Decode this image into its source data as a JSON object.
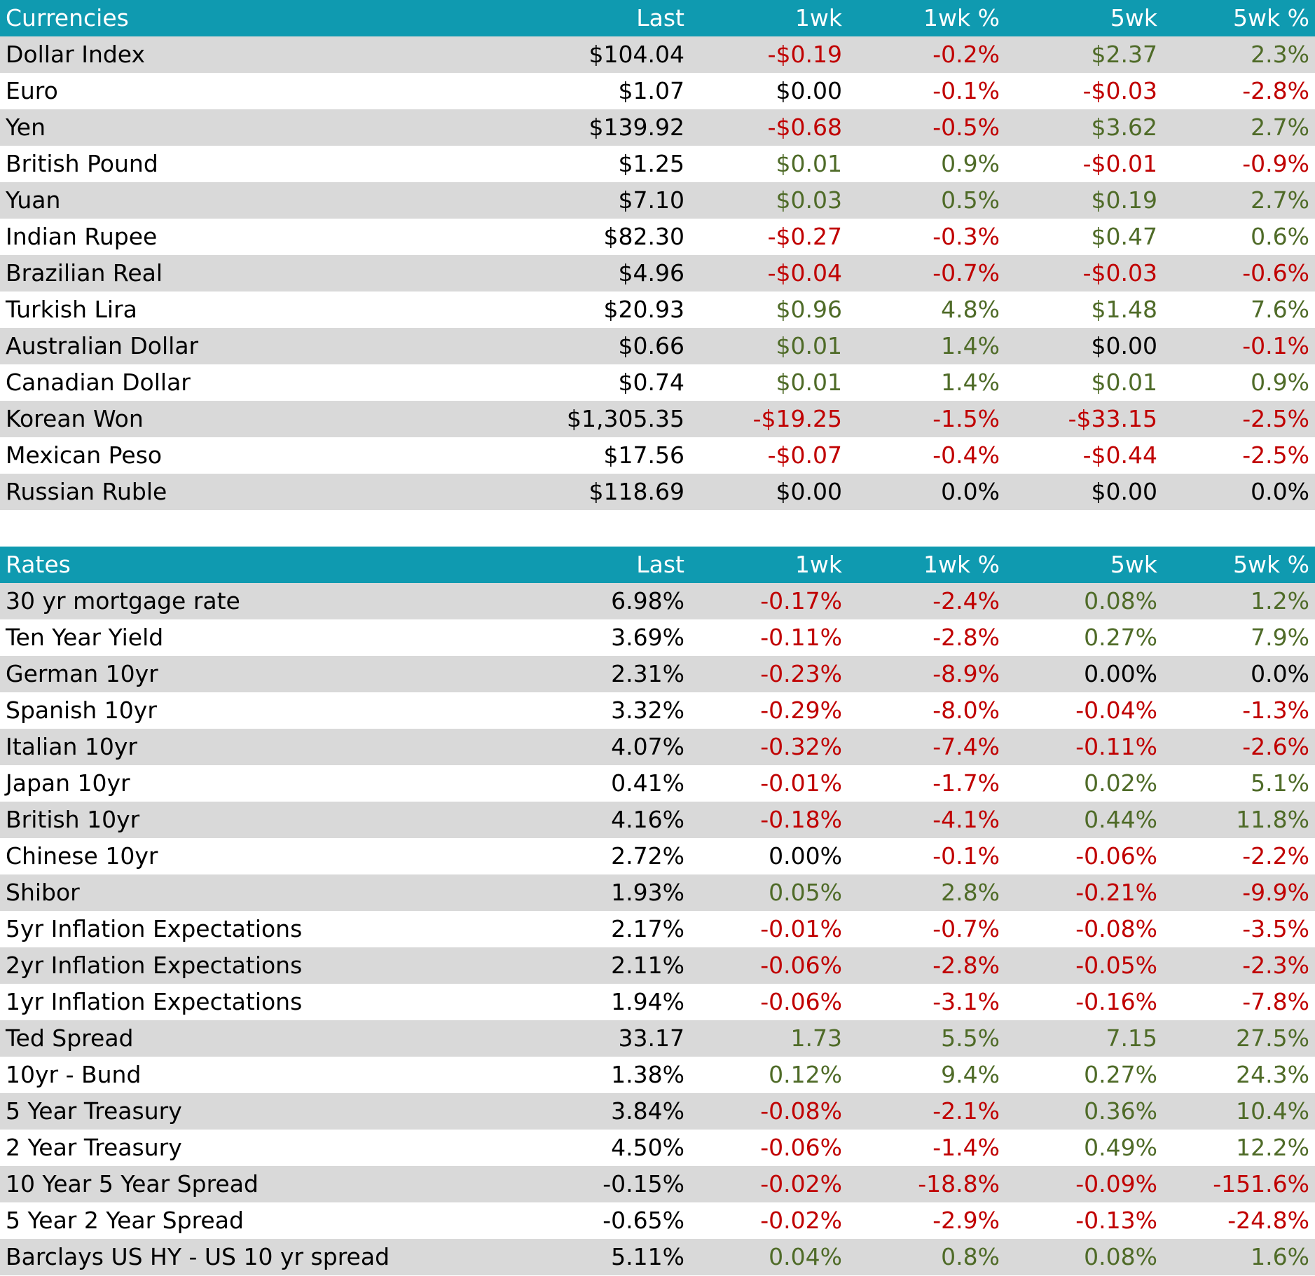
{
  "colors": {
    "header_bg": "#0f9ab0",
    "stripe": "#d9d9d9",
    "positive": "#4f6b28",
    "negative": "#c00000",
    "neutral": "#000000"
  },
  "currencies": {
    "headers": [
      "Currencies",
      "Last",
      "1wk",
      "1wk %",
      "5wk",
      "5wk %"
    ],
    "rows": [
      {
        "name": "Dollar Index",
        "last": "$104.04",
        "wk1": "-$0.19",
        "wk1p": "-0.2%",
        "wk5": "$2.37",
        "wk5p": "2.3%"
      },
      {
        "name": "Euro",
        "last": "$1.07",
        "wk1": "$0.00",
        "wk1p": "-0.1%",
        "wk5": "-$0.03",
        "wk5p": "-2.8%"
      },
      {
        "name": "Yen",
        "last": "$139.92",
        "wk1": "-$0.68",
        "wk1p": "-0.5%",
        "wk5": "$3.62",
        "wk5p": "2.7%"
      },
      {
        "name": "British Pound",
        "last": "$1.25",
        "wk1": "$0.01",
        "wk1p": "0.9%",
        "wk5": "-$0.01",
        "wk5p": "-0.9%"
      },
      {
        "name": "Yuan",
        "last": "$7.10",
        "wk1": "$0.03",
        "wk1p": "0.5%",
        "wk5": "$0.19",
        "wk5p": "2.7%"
      },
      {
        "name": "Indian Rupee",
        "last": "$82.30",
        "wk1": "-$0.27",
        "wk1p": "-0.3%",
        "wk5": "$0.47",
        "wk5p": "0.6%"
      },
      {
        "name": "Brazilian Real",
        "last": "$4.96",
        "wk1": "-$0.04",
        "wk1p": "-0.7%",
        "wk5": "-$0.03",
        "wk5p": "-0.6%"
      },
      {
        "name": "Turkish Lira",
        "last": "$20.93",
        "wk1": "$0.96",
        "wk1p": "4.8%",
        "wk5": "$1.48",
        "wk5p": "7.6%"
      },
      {
        "name": "Australian Dollar",
        "last": "$0.66",
        "wk1": "$0.01",
        "wk1p": "1.4%",
        "wk5": "$0.00",
        "wk5p": "-0.1%"
      },
      {
        "name": "Canadian Dollar",
        "last": "$0.74",
        "wk1": "$0.01",
        "wk1p": "1.4%",
        "wk5": "$0.01",
        "wk5p": "0.9%"
      },
      {
        "name": "Korean Won",
        "last": "$1,305.35",
        "wk1": "-$19.25",
        "wk1p": "-1.5%",
        "wk5": "-$33.15",
        "wk5p": "-2.5%"
      },
      {
        "name": "Mexican Peso",
        "last": "$17.56",
        "wk1": "-$0.07",
        "wk1p": "-0.4%",
        "wk5": "-$0.44",
        "wk5p": "-2.5%"
      },
      {
        "name": "Russian Ruble",
        "last": "$118.69",
        "wk1": "$0.00",
        "wk1p": "0.0%",
        "wk5": "$0.00",
        "wk5p": "0.0%"
      }
    ]
  },
  "rates": {
    "headers": [
      "Rates",
      "Last",
      "1wk",
      "1wk %",
      "5wk",
      "5wk %"
    ],
    "rows": [
      {
        "name": "30 yr mortgage rate",
        "last": "6.98%",
        "wk1": "-0.17%",
        "wk1p": "-2.4%",
        "wk5": "0.08%",
        "wk5p": "1.2%"
      },
      {
        "name": "Ten Year Yield",
        "last": "3.69%",
        "wk1": "-0.11%",
        "wk1p": "-2.8%",
        "wk5": "0.27%",
        "wk5p": "7.9%"
      },
      {
        "name": "German 10yr",
        "last": "2.31%",
        "wk1": "-0.23%",
        "wk1p": "-8.9%",
        "wk5": "0.00%",
        "wk5p": "0.0%"
      },
      {
        "name": "Spanish 10yr",
        "last": "3.32%",
        "wk1": "-0.29%",
        "wk1p": "-8.0%",
        "wk5": "-0.04%",
        "wk5p": "-1.3%"
      },
      {
        "name": "Italian 10yr",
        "last": "4.07%",
        "wk1": "-0.32%",
        "wk1p": "-7.4%",
        "wk5": "-0.11%",
        "wk5p": "-2.6%"
      },
      {
        "name": "Japan 10yr",
        "last": "0.41%",
        "wk1": "-0.01%",
        "wk1p": "-1.7%",
        "wk5": "0.02%",
        "wk5p": "5.1%"
      },
      {
        "name": "British 10yr",
        "last": "4.16%",
        "wk1": "-0.18%",
        "wk1p": "-4.1%",
        "wk5": "0.44%",
        "wk5p": "11.8%"
      },
      {
        "name": "Chinese 10yr",
        "last": "2.72%",
        "wk1": "0.00%",
        "wk1p": "-0.1%",
        "wk5": "-0.06%",
        "wk5p": "-2.2%"
      },
      {
        "name": "Shibor",
        "last": "1.93%",
        "wk1": "0.05%",
        "wk1p": "2.8%",
        "wk5": "-0.21%",
        "wk5p": "-9.9%"
      },
      {
        "name": "5yr Inflation Expectations",
        "last": "2.17%",
        "wk1": "-0.01%",
        "wk1p": "-0.7%",
        "wk5": "-0.08%",
        "wk5p": "-3.5%"
      },
      {
        "name": "2yr Inflation Expectations",
        "last": "2.11%",
        "wk1": "-0.06%",
        "wk1p": "-2.8%",
        "wk5": "-0.05%",
        "wk5p": "-2.3%"
      },
      {
        "name": "1yr Inflation Expectations",
        "last": "1.94%",
        "wk1": "-0.06%",
        "wk1p": "-3.1%",
        "wk5": "-0.16%",
        "wk5p": "-7.8%"
      },
      {
        "name": "Ted Spread",
        "last": "33.17",
        "wk1": "1.73",
        "wk1p": "5.5%",
        "wk5": "7.15",
        "wk5p": "27.5%"
      },
      {
        "name": "10yr - Bund",
        "last": "1.38%",
        "wk1": "0.12%",
        "wk1p": "9.4%",
        "wk5": "0.27%",
        "wk5p": "24.3%"
      },
      {
        "name": "5 Year Treasury",
        "last": "3.84%",
        "wk1": "-0.08%",
        "wk1p": "-2.1%",
        "wk5": "0.36%",
        "wk5p": "10.4%"
      },
      {
        "name": "2 Year Treasury",
        "last": "4.50%",
        "wk1": "-0.06%",
        "wk1p": "-1.4%",
        "wk5": "0.49%",
        "wk5p": "12.2%"
      },
      {
        "name": "10 Year 5 Year Spread",
        "last": "-0.15%",
        "wk1": "-0.02%",
        "wk1p": "-18.8%",
        "wk5": "-0.09%",
        "wk5p": "-151.6%"
      },
      {
        "name": "5 Year 2 Year Spread",
        "last": "-0.65%",
        "wk1": "-0.02%",
        "wk1p": "-2.9%",
        "wk5": "-0.13%",
        "wk5p": "-24.8%"
      },
      {
        "name": "Barclays US HY - US 10 yr spread",
        "last": "5.11%",
        "wk1": "0.04%",
        "wk1p": "0.8%",
        "wk5": "0.08%",
        "wk5p": "1.6%"
      }
    ]
  }
}
